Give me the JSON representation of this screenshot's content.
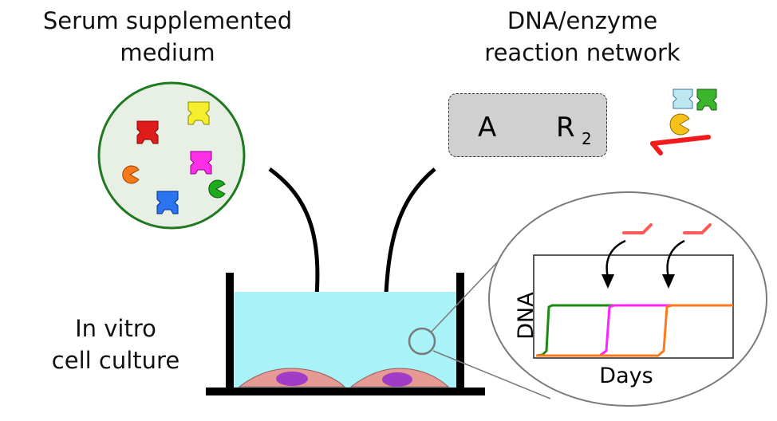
{
  "serum": {
    "line1": "Serum supplemented",
    "line2": "medium"
  },
  "network": {
    "line1": "DNA/enzyme",
    "line2": "reaction network",
    "node_a": "A",
    "node_r": "R",
    "node_r_sub": "2"
  },
  "culture": {
    "line1": "In vitro",
    "line2": "cell culture"
  },
  "plot": {
    "xlabel": "Days",
    "ylabel": "DNA"
  },
  "colors": {
    "serum_disc": "#e8efe4",
    "serum_border": "#1f7a1f",
    "medium": "#a9f3f8",
    "cell": "#e59a94",
    "nucleus": "#a23cc6",
    "trace_green": "#1a8a12",
    "trace_magenta": "#ff22ff",
    "trace_orange": "#ff7a1a",
    "primer_red": "#ff5a5a"
  }
}
